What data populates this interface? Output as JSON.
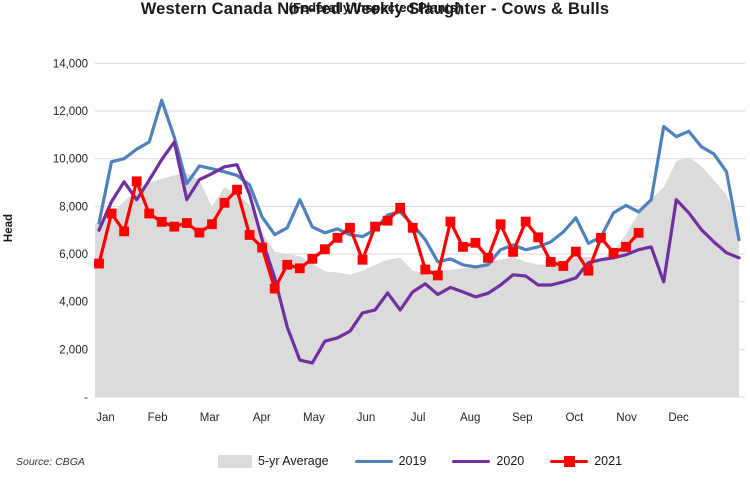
{
  "title": "Western Canada Non-fed Weekly Slaughter - Cows & Bulls",
  "subtitle": "(Federally Inspected Plants)",
  "source": "Source: CBGA",
  "y_axis": {
    "label": "Head",
    "tick_labels": [
      "14,000",
      "12,000",
      "10,000",
      "8,000",
      "6,000",
      "4,000",
      "2,000",
      "-"
    ],
    "tick_values": [
      14000,
      12000,
      10000,
      8000,
      6000,
      4000,
      2000,
      0
    ]
  },
  "x_axis": {
    "months": [
      "Jan",
      "Feb",
      "Mar",
      "Apr",
      "May",
      "Jun",
      "Jul",
      "Aug",
      "Sep",
      "Oct",
      "Nov",
      "Dec"
    ]
  },
  "legend": [
    {
      "label": "5-yr Average",
      "color": "#DBDBDB",
      "swatch": "area"
    },
    {
      "label": "2019",
      "color": "#4F81BD",
      "swatch": "line"
    },
    {
      "label": "2020",
      "color": "#7030A0",
      "swatch": "line"
    },
    {
      "label": "2021",
      "color": "#FF0000",
      "swatch": "line-square"
    }
  ],
  "chart_data": {
    "type": "line",
    "title": "Western Canada Non-fed Weekly Slaughter - Cows & Bulls",
    "subtitle": "(Federally Inspected Plants)",
    "xlabel": "",
    "ylabel": "Head",
    "ylim": [
      0,
      14000
    ],
    "grid": "horizontal",
    "legend_position": "bottom",
    "x_unit": "week-of-year",
    "weeks": 52,
    "month_ticks": [
      "Jan",
      "Feb",
      "Mar",
      "Apr",
      "May",
      "Jun",
      "Jul",
      "Aug",
      "Sep",
      "Oct",
      "Nov",
      "Dec"
    ],
    "series": [
      {
        "name": "5-yr Average",
        "style": "area",
        "color": "#DBDBDB",
        "values": [
          7300,
          7700,
          8200,
          8700,
          9000,
          9150,
          9300,
          9400,
          9100,
          8000,
          8800,
          8500,
          8070,
          6900,
          6100,
          6000,
          5900,
          5600,
          5270,
          5230,
          5130,
          5300,
          5550,
          5760,
          5840,
          5300,
          5200,
          5350,
          5330,
          5400,
          5420,
          5700,
          5750,
          5880,
          5670,
          5550,
          5580,
          5700,
          5850,
          5880,
          5800,
          6100,
          6850,
          7700,
          8300,
          8800,
          9900,
          10050,
          9700,
          9100,
          8500,
          7100
        ]
      },
      {
        "name": "2019",
        "style": "line",
        "color": "#4F81BD",
        "values": [
          7300,
          9870,
          10000,
          10400,
          10700,
          12450,
          10900,
          8950,
          9700,
          9580,
          9450,
          9300,
          8900,
          7560,
          6810,
          7100,
          8280,
          7140,
          6890,
          7060,
          6810,
          6730,
          7020,
          7640,
          7770,
          7230,
          6600,
          5670,
          5800,
          5550,
          5460,
          5550,
          6180,
          6380,
          6180,
          6300,
          6510,
          6930,
          7520,
          6450,
          6720,
          7730,
          8040,
          7770,
          8280,
          11350,
          10930,
          11150,
          10500,
          10200,
          9450,
          6600
        ]
      },
      {
        "name": "2020",
        "style": "line",
        "color": "#7030A0",
        "values": [
          7000,
          8200,
          9030,
          8280,
          9100,
          9960,
          10700,
          8280,
          9120,
          9370,
          9660,
          9750,
          8500,
          6600,
          5000,
          2940,
          1550,
          1430,
          2340,
          2480,
          2760,
          3530,
          3650,
          4370,
          3650,
          4410,
          4750,
          4300,
          4600,
          4410,
          4200,
          4350,
          4700,
          5130,
          5080,
          4700,
          4700,
          4830,
          5000,
          5630,
          5760,
          5840,
          5970,
          6180,
          6300,
          4830,
          8280,
          7730,
          7020,
          6510,
          6050,
          5840
        ]
      },
      {
        "name": "2021",
        "style": "line-square-marker",
        "color": "#FF0000",
        "values": [
          5600,
          7700,
          6950,
          9050,
          7700,
          7350,
          7150,
          7300,
          6900,
          7250,
          8150,
          8700,
          6800,
          6270,
          4550,
          5550,
          5400,
          5800,
          6200,
          6680,
          7100,
          5760,
          7150,
          7400,
          7940,
          7100,
          5350,
          5100,
          7360,
          6300,
          6470,
          5840,
          7250,
          6090,
          7360,
          6700,
          5670,
          5500,
          6100,
          5300,
          6680,
          6050,
          6300,
          6890
        ]
      }
    ]
  }
}
